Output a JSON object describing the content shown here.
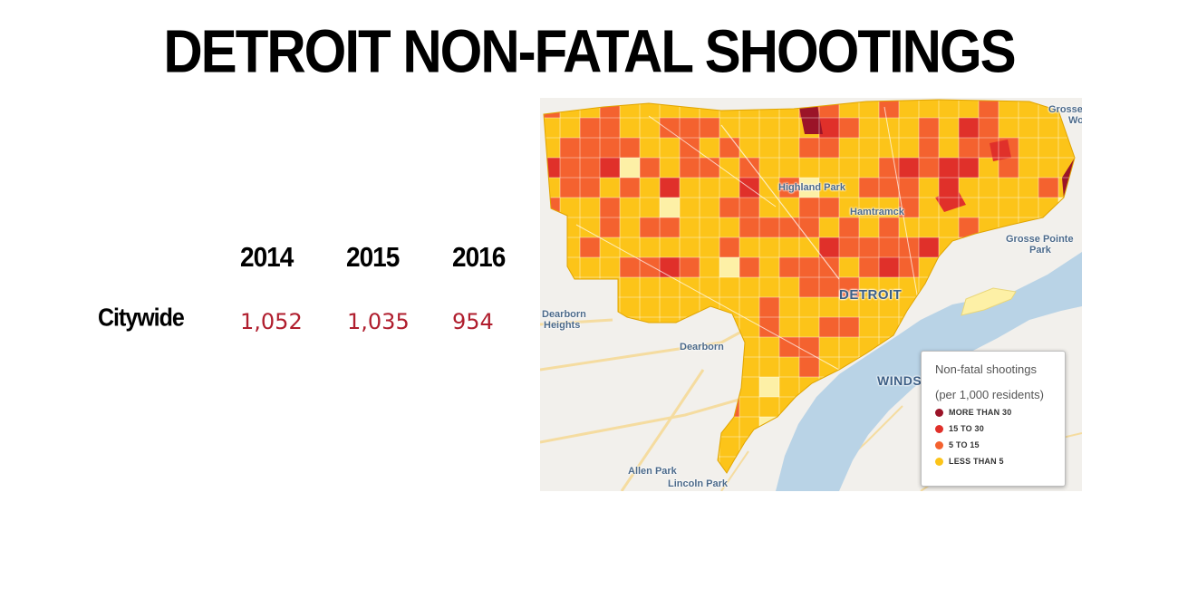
{
  "title": "DETROIT NON-FATAL SHOOTINGS",
  "table": {
    "years": [
      "2014",
      "2015",
      "2016"
    ],
    "row_label": "Citywide",
    "values": [
      "1,052",
      "1,035",
      "954"
    ]
  },
  "map": {
    "places": {
      "highland_park": "Highland Park",
      "hamtramck": "Hamtramck",
      "detroit": "DETROIT",
      "grosse_pointe_park_1": "Grosse Pointe",
      "grosse_pointe_park_2": "Park",
      "grosse_woods_1": "Grosse",
      "grosse_woods_2": "Wo",
      "dearborn_heights_1": "Dearborn",
      "dearborn_heights_2": "Heights",
      "dearborn": "Dearborn",
      "windsor": "WINDS",
      "allen_park": "Allen Park",
      "lincoln_park": "Lincoln Park"
    },
    "colors": {
      "background": "#f2f0ec",
      "water": "#b9d3e6",
      "less_than_5": "#fcc419",
      "five_to_15": "#f4622f",
      "fifteen_to_30": "#e0302a",
      "more_than_30": "#9b1428",
      "low_pale": "#fdf0a6"
    },
    "legend": {
      "title": "Non-fatal shootings",
      "subtitle": "(per 1,000 residents)",
      "items": [
        {
          "label": "MORE THAN 30",
          "color": "#9b1428"
        },
        {
          "label": "15 TO 30",
          "color": "#e0302a"
        },
        {
          "label": "5 TO 15",
          "color": "#f4622f"
        },
        {
          "label": "LESS THAN 5",
          "color": "#fcc419"
        }
      ]
    }
  }
}
